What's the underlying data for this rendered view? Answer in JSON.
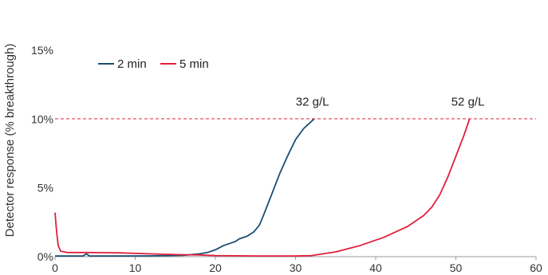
{
  "chart_data": {
    "type": "line",
    "title": "",
    "xlabel": "",
    "ylabel": "Detector response (% breakthrough)",
    "xlim": [
      0,
      60
    ],
    "ylim": [
      0,
      15
    ],
    "x_ticks": [
      "0",
      "10",
      "20",
      "30",
      "40",
      "50",
      "60"
    ],
    "y_ticks": [
      "0%",
      "5%",
      "10%",
      "15%"
    ],
    "grid": false,
    "legend_position": "top-left",
    "reference_line": {
      "y": 10,
      "style": "dashed",
      "color": "#e0203c"
    },
    "annotations": [
      {
        "text": "32 g/L",
        "x": 32.3,
        "y": 10
      },
      {
        "text": "52 g/L",
        "x": 51.7,
        "y": 10
      }
    ],
    "series": [
      {
        "name": "2 min",
        "color": "#1b4f72",
        "points": [
          [
            0,
            0.05
          ],
          [
            3.5,
            0.05
          ],
          [
            3.9,
            0.2
          ],
          [
            4.3,
            0.05
          ],
          [
            8,
            0.05
          ],
          [
            12,
            0.06
          ],
          [
            16,
            0.1
          ],
          [
            18,
            0.2
          ],
          [
            19,
            0.3
          ],
          [
            20,
            0.5
          ],
          [
            21,
            0.8
          ],
          [
            22,
            1.0
          ],
          [
            22.5,
            1.1
          ],
          [
            23,
            1.3
          ],
          [
            24,
            1.5
          ],
          [
            24.8,
            1.8
          ],
          [
            25.5,
            2.3
          ],
          [
            26,
            3.0
          ],
          [
            27,
            4.5
          ],
          [
            28,
            6.0
          ],
          [
            29,
            7.3
          ],
          [
            30,
            8.5
          ],
          [
            31,
            9.3
          ],
          [
            32.3,
            10
          ]
        ]
      },
      {
        "name": "5 min",
        "color": "#e0203c",
        "points": [
          [
            0,
            3.2
          ],
          [
            0.2,
            1.8
          ],
          [
            0.4,
            0.8
          ],
          [
            0.7,
            0.4
          ],
          [
            1.5,
            0.3
          ],
          [
            4,
            0.3
          ],
          [
            8,
            0.28
          ],
          [
            12,
            0.2
          ],
          [
            15,
            0.15
          ],
          [
            18,
            0.12
          ],
          [
            20,
            0.08
          ],
          [
            25,
            0.05
          ],
          [
            30,
            0.05
          ],
          [
            32,
            0.08
          ],
          [
            35,
            0.35
          ],
          [
            38,
            0.8
          ],
          [
            41,
            1.4
          ],
          [
            44,
            2.2
          ],
          [
            46,
            3.0
          ],
          [
            47,
            3.6
          ],
          [
            48,
            4.5
          ],
          [
            49,
            5.8
          ],
          [
            50,
            7.3
          ],
          [
            51,
            8.8
          ],
          [
            51.7,
            10
          ]
        ]
      }
    ]
  }
}
